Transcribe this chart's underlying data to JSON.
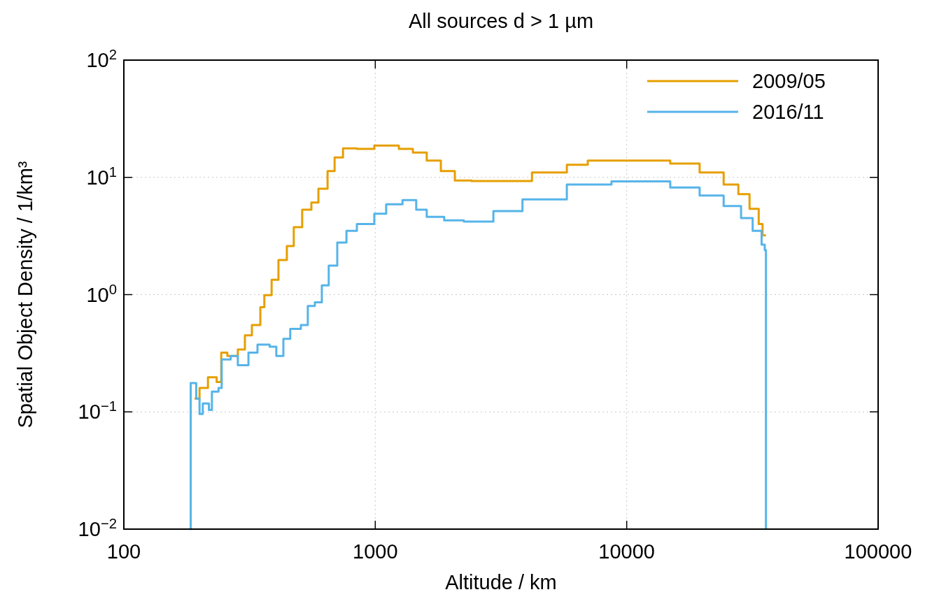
{
  "chart_data": {
    "type": "step",
    "title": "All sources d > 1 µm",
    "xlabel": "Altitude / km",
    "ylabel": "Spatial Object Density / 1/km³",
    "log": "xy",
    "grid": true,
    "legend": "top right",
    "line_style": "solid",
    "marker": "none",
    "xlim": [
      100,
      100000
    ],
    "xticks": [
      100,
      1000,
      10000,
      100000
    ],
    "ylim": [
      0.01,
      100
    ],
    "yticks": [
      {
        "value": 0.01,
        "label": "10$^{−2}$"
      },
      {
        "value": 0.1,
        "label": "10$^{−1}$"
      },
      {
        "value": 1,
        "label": "10$^{0}$"
      },
      {
        "value": 10,
        "label": "10$^{1}$"
      },
      {
        "value": 100,
        "label": "10$^{2}$"
      }
    ],
    "series": [
      {
        "name": "2009/05",
        "color": "#e69f00",
        "x": [
          191,
          200,
          216,
          234,
          244,
          258,
          284,
          303,
          323,
          349,
          362,
          387,
          412,
          445,
          474,
          512,
          557,
          594,
          646,
          689,
          744,
          845,
          991,
          1241,
          1411,
          1602,
          1823,
          2072,
          2415,
          2985,
          4200,
          5780,
          7000,
          10620,
          14900,
          19500,
          24300,
          27800,
          30800,
          33500,
          34700,
          35800
        ],
        "values": [
          0.13,
          0.16,
          0.197,
          0.18,
          0.32,
          0.3,
          0.34,
          0.45,
          0.55,
          0.78,
          0.99,
          1.34,
          1.97,
          2.6,
          3.76,
          5.3,
          6.1,
          8.0,
          11.3,
          14.8,
          17.7,
          17.5,
          18.7,
          17.5,
          16.3,
          13.9,
          11.3,
          9.4,
          9.3,
          9.3,
          11.0,
          12.8,
          13.9,
          13.9,
          13.1,
          11.0,
          8.7,
          7.2,
          5.4,
          4.0,
          3.2,
          3.2
        ]
      },
      {
        "name": "2016/11",
        "color": "#56b4e9",
        "x": [
          184,
          184.5,
          194,
          200,
          206,
          218,
          224,
          238,
          245,
          266,
          284,
          313,
          340,
          380,
          404,
          431,
          459,
          506,
          539,
          575,
          613,
          653,
          706,
          768,
          845,
          991,
          1105,
          1283,
          1455,
          1602,
          1880,
          2250,
          2950,
          3850,
          5780,
          8700,
          14900,
          19500,
          24300,
          28500,
          31700,
          34400,
          35400,
          35800
        ],
        "values": [
          0.01,
          0.176,
          0.13,
          0.096,
          0.118,
          0.104,
          0.149,
          0.16,
          0.28,
          0.3,
          0.25,
          0.32,
          0.375,
          0.36,
          0.3,
          0.42,
          0.51,
          0.55,
          0.8,
          0.86,
          1.2,
          1.77,
          2.78,
          3.5,
          4.0,
          4.9,
          5.9,
          6.4,
          5.3,
          4.6,
          4.3,
          4.2,
          5.15,
          6.5,
          8.7,
          9.25,
          8.2,
          7.0,
          5.7,
          4.5,
          3.5,
          2.67,
          2.4,
          0.01
        ]
      }
    ]
  }
}
